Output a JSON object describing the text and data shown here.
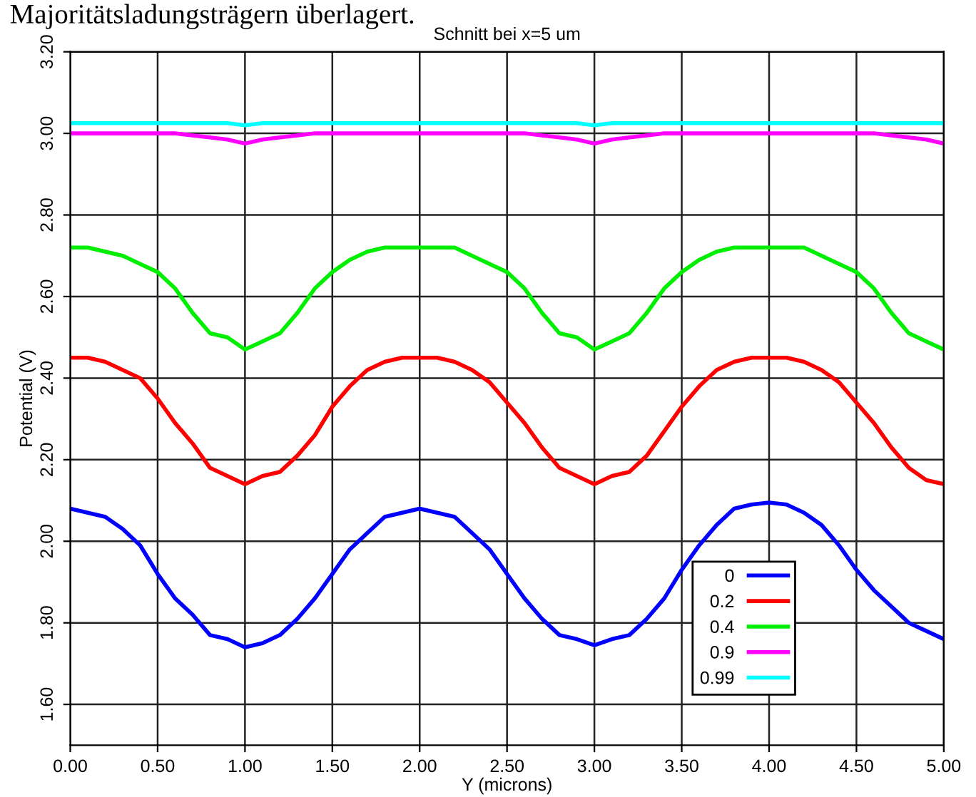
{
  "chart_data": {
    "type": "line",
    "title": "Schnitt bei x=5 um",
    "xlabel": "Y (microns)",
    "ylabel": "Potential (V)",
    "annotations": [
      "Majoritätsladungsträgern überlagert."
    ],
    "xlim": [
      0,
      5
    ],
    "ylim": [
      1.5,
      3.2
    ],
    "xticks": [
      {
        "value": 0,
        "label": "0.00"
      },
      {
        "value": 0.5,
        "label": "0.50"
      },
      {
        "value": 1,
        "label": "1.00"
      },
      {
        "value": 1.5,
        "label": "1.50"
      },
      {
        "value": 2,
        "label": "2.00"
      },
      {
        "value": 2.5,
        "label": "2.50"
      },
      {
        "value": 3,
        "label": "3.00"
      },
      {
        "value": 3.5,
        "label": "3.50"
      },
      {
        "value": 4,
        "label": "4.00"
      },
      {
        "value": 4.5,
        "label": "4.50"
      },
      {
        "value": 5,
        "label": "5.00"
      }
    ],
    "yticks": [
      {
        "value": 1.6,
        "label": "1.60"
      },
      {
        "value": 1.8,
        "label": "1.80"
      },
      {
        "value": 2.0,
        "label": "2.00"
      },
      {
        "value": 2.2,
        "label": "2.20"
      },
      {
        "value": 2.4,
        "label": "2.40"
      },
      {
        "value": 2.6,
        "label": "2.60"
      },
      {
        "value": 2.8,
        "label": "2.80"
      },
      {
        "value": 3.0,
        "label": "3.00"
      },
      {
        "value": 3.2,
        "label": "3.20"
      }
    ],
    "grid": true,
    "legend": "bottom right",
    "marker": "none",
    "line_style": "solid",
    "x": [
      0,
      0.1,
      0.2,
      0.3,
      0.4,
      0.5,
      0.6,
      0.7,
      0.8,
      0.9,
      1.0,
      1.1,
      1.2,
      1.3,
      1.4,
      1.5,
      1.6,
      1.7,
      1.8,
      1.9,
      2.0,
      2.1,
      2.2,
      2.3,
      2.4,
      2.5,
      2.6,
      2.7,
      2.8,
      2.9,
      3.0,
      3.1,
      3.2,
      3.3,
      3.4,
      3.5,
      3.6,
      3.7,
      3.8,
      3.9,
      4.0,
      4.1,
      4.2,
      4.3,
      4.4,
      4.5,
      4.6,
      4.7,
      4.8,
      4.9,
      5.0
    ],
    "series": [
      {
        "name": "0",
        "color": "#0000ff",
        "values": [
          2.08,
          2.07,
          2.06,
          2.03,
          1.99,
          1.92,
          1.86,
          1.82,
          1.77,
          1.76,
          1.74,
          1.75,
          1.77,
          1.81,
          1.86,
          1.92,
          1.98,
          2.02,
          2.06,
          2.07,
          2.08,
          2.07,
          2.06,
          2.02,
          1.98,
          1.92,
          1.86,
          1.81,
          1.77,
          1.76,
          1.745,
          1.76,
          1.77,
          1.81,
          1.86,
          1.93,
          1.99,
          2.04,
          2.08,
          2.09,
          2.095,
          2.09,
          2.07,
          2.04,
          1.99,
          1.93,
          1.88,
          1.84,
          1.8,
          1.78,
          1.76
        ]
      },
      {
        "name": "0.2",
        "color": "#ff0000",
        "values": [
          2.45,
          2.45,
          2.44,
          2.42,
          2.4,
          2.35,
          2.29,
          2.24,
          2.18,
          2.16,
          2.14,
          2.16,
          2.17,
          2.21,
          2.26,
          2.33,
          2.38,
          2.42,
          2.44,
          2.45,
          2.45,
          2.45,
          2.44,
          2.42,
          2.39,
          2.34,
          2.29,
          2.23,
          2.18,
          2.16,
          2.14,
          2.16,
          2.17,
          2.21,
          2.27,
          2.33,
          2.38,
          2.42,
          2.44,
          2.45,
          2.45,
          2.45,
          2.44,
          2.42,
          2.39,
          2.34,
          2.29,
          2.23,
          2.18,
          2.15,
          2.14
        ]
      },
      {
        "name": "0.4",
        "color": "#00ee00",
        "values": [
          2.72,
          2.72,
          2.71,
          2.7,
          2.68,
          2.66,
          2.62,
          2.56,
          2.51,
          2.5,
          2.47,
          2.49,
          2.51,
          2.56,
          2.62,
          2.66,
          2.69,
          2.71,
          2.72,
          2.72,
          2.72,
          2.72,
          2.72,
          2.7,
          2.68,
          2.66,
          2.62,
          2.56,
          2.51,
          2.5,
          2.47,
          2.49,
          2.51,
          2.56,
          2.62,
          2.66,
          2.69,
          2.71,
          2.72,
          2.72,
          2.72,
          2.72,
          2.72,
          2.7,
          2.68,
          2.66,
          2.62,
          2.56,
          2.51,
          2.49,
          2.47
        ]
      },
      {
        "name": "0.9",
        "color": "#ff00ff",
        "values": [
          3.0,
          3.0,
          3.0,
          3.0,
          3.0,
          3.0,
          3.0,
          2.995,
          2.99,
          2.985,
          2.975,
          2.985,
          2.99,
          2.995,
          3.0,
          3.0,
          3.0,
          3.0,
          3.0,
          3.0,
          3.0,
          3.0,
          3.0,
          3.0,
          3.0,
          3.0,
          3.0,
          2.995,
          2.99,
          2.985,
          2.975,
          2.985,
          2.99,
          2.995,
          3.0,
          3.0,
          3.0,
          3.0,
          3.0,
          3.0,
          3.0,
          3.0,
          3.0,
          3.0,
          3.0,
          3.0,
          3.0,
          2.995,
          2.99,
          2.985,
          2.975
        ]
      },
      {
        "name": "0.99",
        "color": "#00ffff",
        "values": [
          3.025,
          3.025,
          3.025,
          3.025,
          3.025,
          3.025,
          3.025,
          3.025,
          3.025,
          3.025,
          3.02,
          3.025,
          3.025,
          3.025,
          3.025,
          3.025,
          3.025,
          3.025,
          3.025,
          3.025,
          3.025,
          3.025,
          3.025,
          3.025,
          3.025,
          3.025,
          3.025,
          3.025,
          3.025,
          3.025,
          3.02,
          3.025,
          3.025,
          3.025,
          3.025,
          3.025,
          3.025,
          3.025,
          3.025,
          3.025,
          3.025,
          3.025,
          3.025,
          3.025,
          3.025,
          3.025,
          3.025,
          3.025,
          3.025,
          3.025,
          3.025
        ]
      }
    ]
  }
}
